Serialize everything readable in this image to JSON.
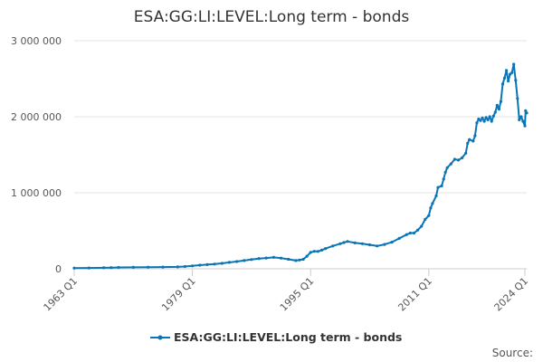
{
  "chart_data": {
    "type": "line",
    "title": "ESA:GG:LI:LEVEL:Long term - bonds",
    "xlabel": "",
    "ylabel": "",
    "x_tick_labels": [
      "1963 Q1",
      "1979 Q1",
      "1995 Q1",
      "2011 Q1",
      "2024 Q1"
    ],
    "x_tick_years": [
      1963,
      1979,
      1995,
      2011,
      2024
    ],
    "xlim": [
      1963,
      2024.25
    ],
    "ylim": [
      0,
      3000000
    ],
    "y_ticks": [
      0,
      1000000,
      2000000,
      3000000
    ],
    "y_tick_labels": [
      "0",
      "1 000 000",
      "2 000 000",
      "3 000 000"
    ],
    "grid": true,
    "legend_position": "bottom",
    "source_label": "Source:",
    "series": [
      {
        "name": "ESA:GG:LI:LEVEL:Long term - bonds",
        "color": "#0a74b4",
        "points": [
          [
            1963.0,
            10000
          ],
          [
            1965.0,
            11000
          ],
          [
            1967.0,
            13000
          ],
          [
            1968.0,
            16000
          ],
          [
            1969.0,
            18000
          ],
          [
            1971.0,
            19000
          ],
          [
            1973.0,
            21000
          ],
          [
            1975.0,
            23000
          ],
          [
            1977.0,
            25000
          ],
          [
            1978.0,
            30000
          ],
          [
            1979.0,
            38000
          ],
          [
            1980.0,
            48000
          ],
          [
            1981.0,
            55000
          ],
          [
            1982.0,
            62000
          ],
          [
            1983.0,
            72000
          ],
          [
            1984.0,
            85000
          ],
          [
            1985.0,
            95000
          ],
          [
            1986.0,
            108000
          ],
          [
            1987.0,
            122000
          ],
          [
            1988.0,
            135000
          ],
          [
            1989.0,
            142000
          ],
          [
            1990.0,
            150000
          ],
          [
            1991.0,
            140000
          ],
          [
            1992.0,
            125000
          ],
          [
            1993.0,
            108000
          ],
          [
            1993.5,
            115000
          ],
          [
            1994.0,
            125000
          ],
          [
            1994.5,
            165000
          ],
          [
            1995.0,
            215000
          ],
          [
            1995.5,
            230000
          ],
          [
            1996.0,
            228000
          ],
          [
            1996.5,
            245000
          ],
          [
            1997.0,
            265000
          ],
          [
            1998.0,
            300000
          ],
          [
            1999.0,
            330000
          ],
          [
            1999.5,
            345000
          ],
          [
            2000.0,
            360000
          ],
          [
            2001.0,
            340000
          ],
          [
            2002.0,
            330000
          ],
          [
            2003.0,
            315000
          ],
          [
            2004.0,
            300000
          ],
          [
            2005.0,
            320000
          ],
          [
            2006.0,
            350000
          ],
          [
            2007.0,
            400000
          ],
          [
            2008.0,
            450000
          ],
          [
            2008.5,
            470000
          ],
          [
            2009.0,
            470000
          ],
          [
            2009.5,
            510000
          ],
          [
            2010.0,
            560000
          ],
          [
            2010.5,
            650000
          ],
          [
            2011.0,
            700000
          ],
          [
            2011.25,
            800000
          ],
          [
            2011.5,
            860000
          ],
          [
            2012.0,
            960000
          ],
          [
            2012.25,
            1070000
          ],
          [
            2012.75,
            1090000
          ],
          [
            2013.0,
            1180000
          ],
          [
            2013.25,
            1270000
          ],
          [
            2013.5,
            1330000
          ],
          [
            2014.0,
            1380000
          ],
          [
            2014.5,
            1440000
          ],
          [
            2015.0,
            1430000
          ],
          [
            2015.5,
            1460000
          ],
          [
            2016.0,
            1520000
          ],
          [
            2016.25,
            1650000
          ],
          [
            2016.5,
            1700000
          ],
          [
            2017.0,
            1680000
          ],
          [
            2017.25,
            1750000
          ],
          [
            2017.5,
            1920000
          ],
          [
            2017.75,
            1970000
          ],
          [
            2018.0,
            1950000
          ],
          [
            2018.25,
            1985000
          ],
          [
            2018.5,
            1940000
          ],
          [
            2018.75,
            1990000
          ],
          [
            2019.0,
            1960000
          ],
          [
            2019.25,
            2000000
          ],
          [
            2019.5,
            1940000
          ],
          [
            2019.75,
            2010000
          ],
          [
            2020.0,
            2060000
          ],
          [
            2020.25,
            2150000
          ],
          [
            2020.5,
            2100000
          ],
          [
            2020.75,
            2200000
          ],
          [
            2021.0,
            2430000
          ],
          [
            2021.25,
            2510000
          ],
          [
            2021.5,
            2610000
          ],
          [
            2021.75,
            2470000
          ],
          [
            2022.0,
            2560000
          ],
          [
            2022.25,
            2580000
          ],
          [
            2022.5,
            2690000
          ],
          [
            2022.75,
            2480000
          ],
          [
            2023.0,
            2240000
          ],
          [
            2023.25,
            1960000
          ],
          [
            2023.5,
            2000000
          ],
          [
            2023.75,
            1940000
          ],
          [
            2024.0,
            1880000
          ],
          [
            2024.1,
            2080000
          ],
          [
            2024.25,
            2050000
          ]
        ]
      }
    ]
  }
}
